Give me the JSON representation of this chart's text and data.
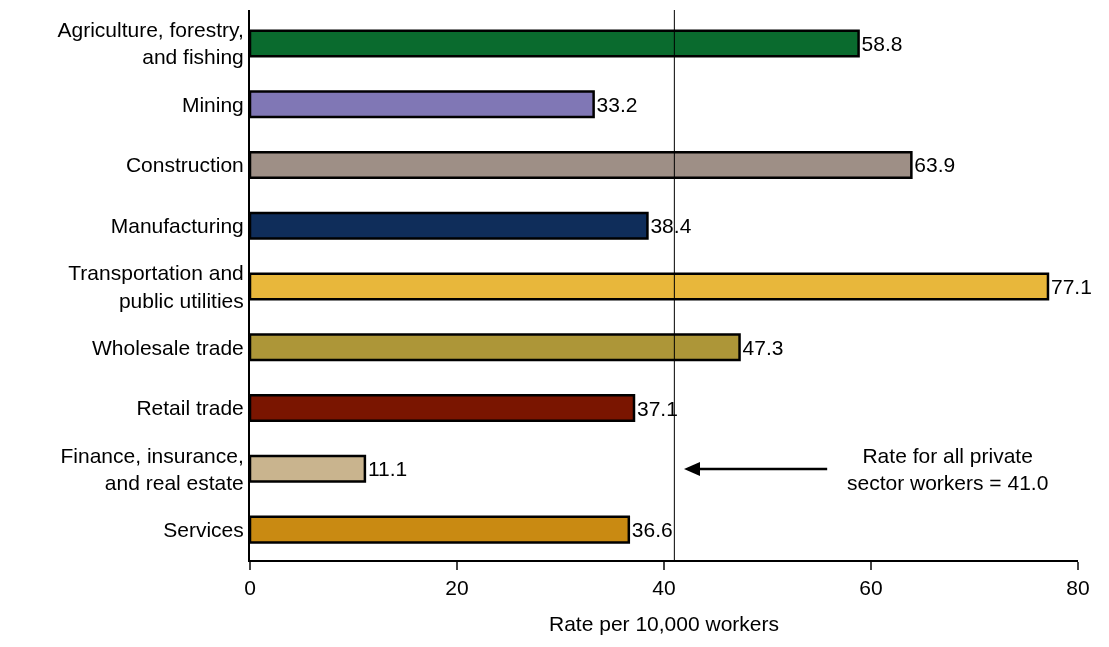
{
  "chart_data": {
    "type": "bar",
    "orientation": "horizontal",
    "categories": [
      "Agriculture, forestry,\nand fishing",
      "Mining",
      "Construction",
      "Manufacturing",
      "Transportation and\npublic utilities",
      "Wholesale trade",
      "Retail trade",
      "Finance, insurance,\nand real estate",
      "Services"
    ],
    "values": [
      58.8,
      33.2,
      63.9,
      38.4,
      77.1,
      47.3,
      37.1,
      11.1,
      36.6
    ],
    "colors": [
      "#0a6b2e",
      "#8077b5",
      "#9e8f86",
      "#0f2d5a",
      "#e8b73b",
      "#ad9638",
      "#7a1500",
      "#c9b48e",
      "#c98a12"
    ],
    "data_labels": true,
    "xlabel": "Rate per 10,000 workers",
    "xlim": [
      0,
      80
    ],
    "xticks": [
      0,
      20,
      40,
      60,
      80
    ],
    "ref_lines": [
      {
        "axis": "x",
        "value": 41.0,
        "label": "Rate for all private\nsector workers = 41.0",
        "color": "#000000"
      }
    ]
  }
}
